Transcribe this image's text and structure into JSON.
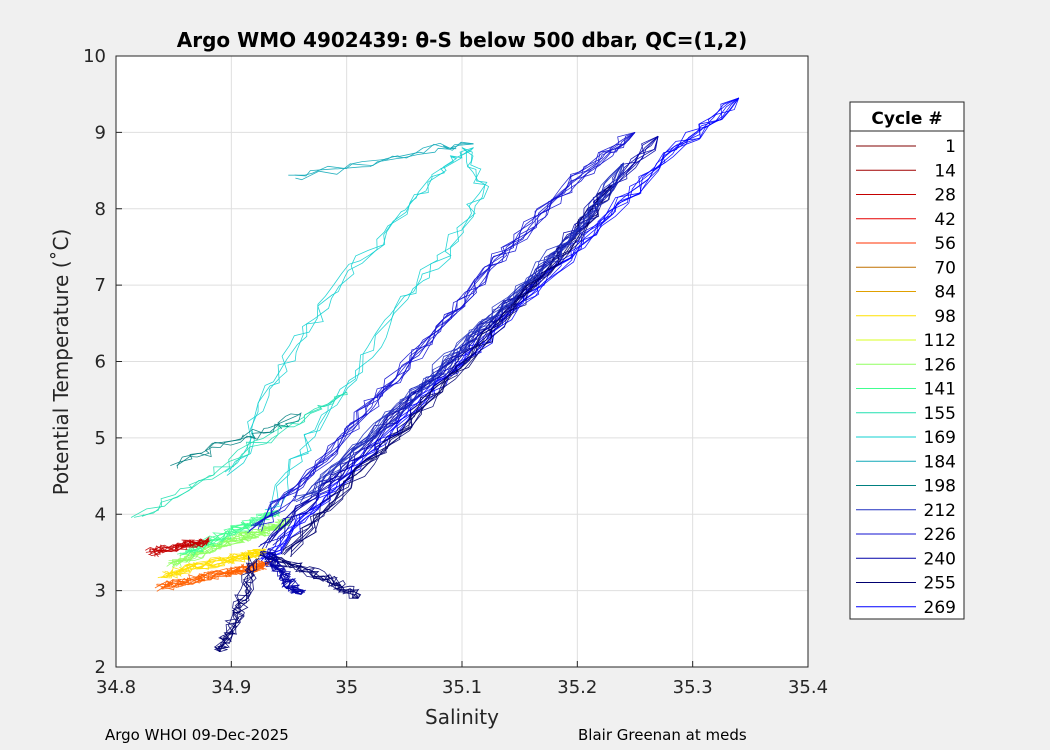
{
  "chart_data": {
    "type": "line",
    "title": "Argo WMO 4902439: θ-S below 500 dbar,  QC=(1,2)",
    "xlabel": "Salinity",
    "ylabel": "Potential Temperature (˚C)",
    "xlim": [
      34.8,
      35.4
    ],
    "ylim": [
      2,
      10
    ],
    "xticks": [
      "34.8",
      "34.9",
      "35",
      "35.1",
      "35.2",
      "35.3",
      "35.4"
    ],
    "yticks": [
      "2",
      "3",
      "4",
      "5",
      "6",
      "7",
      "8",
      "9",
      "10"
    ],
    "grid": true,
    "legend": {
      "title": "Cycle #",
      "placement": "right-outside",
      "entries": [
        {
          "label": "1",
          "color": "#800000"
        },
        {
          "label": "14",
          "color": "#a00000"
        },
        {
          "label": "28",
          "color": "#c40000"
        },
        {
          "label": "42",
          "color": "#e60000"
        },
        {
          "label": "56",
          "color": "#ff3000"
        },
        {
          "label": "70",
          "color": "#c07000"
        },
        {
          "label": "84",
          "color": "#e0a000"
        },
        {
          "label": "98",
          "color": "#ffe000"
        },
        {
          "label": "112",
          "color": "#d8ff20"
        },
        {
          "label": "126",
          "color": "#90ff60"
        },
        {
          "label": "141",
          "color": "#40ff90"
        },
        {
          "label": "155",
          "color": "#20e0b0"
        },
        {
          "label": "169",
          "color": "#10d0d0"
        },
        {
          "label": "184",
          "color": "#10a8b8"
        },
        {
          "label": "198",
          "color": "#008080"
        },
        {
          "label": "212",
          "color": "#2030c0"
        },
        {
          "label": "226",
          "color": "#1010d0"
        },
        {
          "label": "240",
          "color": "#0000a8"
        },
        {
          "label": "255",
          "color": "#000070"
        },
        {
          "label": "269",
          "color": "#0000ff"
        }
      ]
    },
    "series": [
      {
        "group": "early",
        "color": "#ff6000",
        "x": [
          34.84,
          34.87,
          34.9,
          34.92,
          34.93
        ],
        "y": [
          3.05,
          3.15,
          3.25,
          3.3,
          3.35
        ]
      },
      {
        "group": "early",
        "color": "#ffe000",
        "x": [
          34.84,
          34.88,
          34.91,
          34.93
        ],
        "y": [
          3.2,
          3.35,
          3.45,
          3.5
        ]
      },
      {
        "group": "early",
        "color": "#90ff60",
        "x": [
          34.85,
          34.88,
          34.91,
          34.93,
          34.95
        ],
        "y": [
          3.35,
          3.55,
          3.7,
          3.8,
          3.9
        ]
      },
      {
        "group": "early",
        "color": "#40ff90",
        "x": [
          34.86,
          34.89,
          34.92,
          34.94
        ],
        "y": [
          3.5,
          3.7,
          3.9,
          4.05
        ]
      },
      {
        "group": "early",
        "color": "#c40000",
        "x": [
          34.83,
          34.86,
          34.88
        ],
        "y": [
          3.5,
          3.6,
          3.65
        ]
      },
      {
        "group": "mid",
        "color": "#10d0d0",
        "x": [
          34.93,
          34.97,
          35.01,
          35.05,
          35.09,
          35.12,
          35.1
        ],
        "y": [
          4.0,
          5.0,
          5.9,
          6.8,
          7.5,
          8.3,
          8.8
        ]
      },
      {
        "group": "mid",
        "color": "#10d0d0",
        "x": [
          34.9,
          34.93,
          34.96,
          35.0,
          35.04,
          35.08,
          35.11
        ],
        "y": [
          4.5,
          5.5,
          6.3,
          7.1,
          7.8,
          8.5,
          8.8
        ]
      },
      {
        "group": "mid",
        "color": "#20e0b0",
        "x": [
          34.82,
          34.87,
          34.92,
          34.97,
          35.0
        ],
        "y": [
          3.95,
          4.4,
          4.9,
          5.3,
          5.6
        ]
      },
      {
        "group": "mid",
        "color": "#10a8b8",
        "x": [
          34.95,
          35.02,
          35.08,
          35.11
        ],
        "y": [
          8.4,
          8.6,
          8.8,
          8.85
        ]
      },
      {
        "group": "mid",
        "color": "#008080",
        "x": [
          34.85,
          34.89,
          34.93,
          34.96
        ],
        "y": [
          4.6,
          4.9,
          5.1,
          5.3
        ]
      },
      {
        "group": "late",
        "color": "#0000ff",
        "x": [
          34.93,
          34.98,
          35.04,
          35.1,
          35.16,
          35.22,
          35.28,
          35.34
        ],
        "y": [
          3.4,
          4.2,
          5.1,
          6.0,
          6.9,
          7.8,
          8.7,
          9.45
        ]
      },
      {
        "group": "late",
        "color": "#0000a8",
        "x": [
          34.93,
          34.99,
          35.05,
          35.11,
          35.17,
          35.22,
          35.27
        ],
        "y": [
          3.6,
          4.5,
          5.4,
          6.3,
          7.2,
          8.1,
          8.95
        ]
      },
      {
        "group": "late",
        "color": "#1010d0",
        "x": [
          34.92,
          34.98,
          35.03,
          35.09,
          35.14,
          35.2,
          35.25
        ],
        "y": [
          3.8,
          4.7,
          5.6,
          6.6,
          7.5,
          8.4,
          9.0
        ]
      },
      {
        "group": "late",
        "color": "#000070",
        "x": [
          34.95,
          35.0,
          35.06,
          35.12,
          35.18,
          35.23
        ],
        "y": [
          3.5,
          4.4,
          5.3,
          6.3,
          7.3,
          8.3
        ]
      },
      {
        "group": "late",
        "color": "#2030c0",
        "x": [
          34.96,
          35.02,
          35.08,
          35.14,
          35.2,
          35.24
        ],
        "y": [
          4.2,
          5.0,
          5.9,
          6.8,
          7.7,
          8.6
        ]
      },
      {
        "group": "late",
        "color": "#000070",
        "x": [
          34.93,
          34.96,
          34.99,
          35.01
        ],
        "y": [
          3.45,
          3.3,
          3.1,
          2.9
        ]
      },
      {
        "group": "late",
        "color": "#000070",
        "x": [
          34.92,
          34.91,
          34.9,
          34.89
        ],
        "y": [
          3.4,
          2.9,
          2.5,
          2.2
        ]
      },
      {
        "group": "late",
        "color": "#0000a8",
        "x": [
          34.93,
          34.94,
          34.95,
          34.96
        ],
        "y": [
          3.5,
          3.3,
          3.1,
          2.95
        ]
      }
    ]
  },
  "footer": {
    "left": "Argo WHOI 09-Dec-2025",
    "right": "Blair Greenan at meds"
  }
}
